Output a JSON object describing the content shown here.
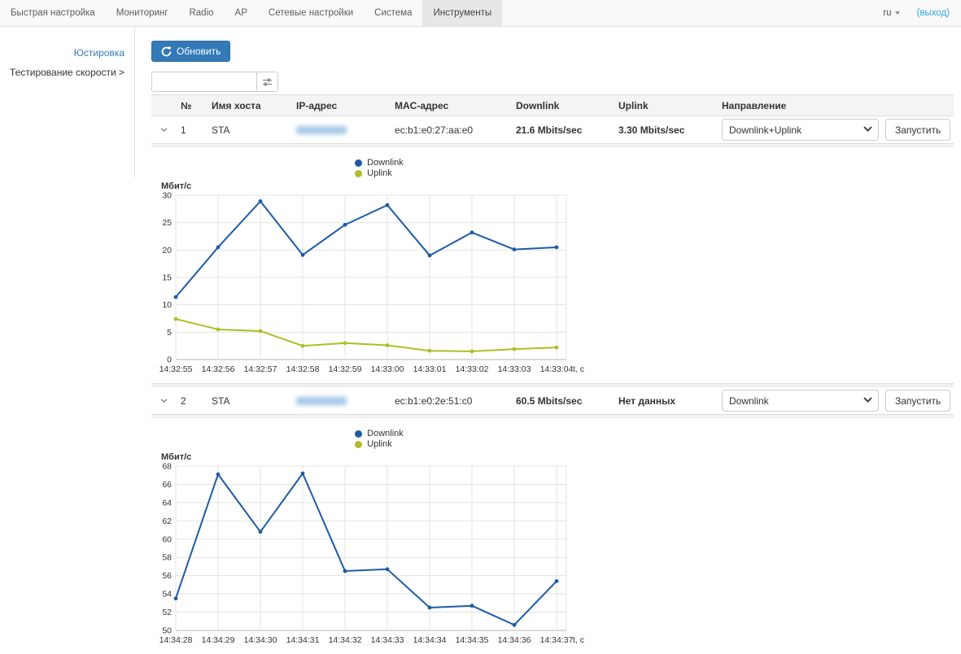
{
  "nav": {
    "tabs": [
      "Быстрая настройка",
      "Мониторинг",
      "Radio",
      "AP",
      "Сетевые настройки",
      "Система",
      "Инструменты"
    ],
    "active_tab": "Инструменты",
    "lang": "ru",
    "logout_label": "(выход)"
  },
  "sidebar": {
    "items": [
      "Юстировка",
      "Тестирование скорости >"
    ]
  },
  "toolbar": {
    "refresh_label": "Обновить",
    "search_value": "",
    "search_placeholder": ""
  },
  "table": {
    "headers": [
      "№",
      "Имя хоста",
      "IP-адрес",
      "MAC-адрес",
      "Downlink",
      "Uplink",
      "Направление"
    ],
    "run_label": "Запустить",
    "rows": [
      {
        "num": "1",
        "host": "STA",
        "ip_redacted": true,
        "mac": "ec:b1:e0:27:aa:e0",
        "downlink": "21.6 Mbits/sec",
        "uplink": "3.30 Mbits/sec",
        "direction": "Downlink+Uplink"
      },
      {
        "num": "2",
        "host": "STA",
        "ip_redacted": true,
        "mac": "ec:b1:e0:2e:51:c0",
        "downlink": "60.5 Mbits/sec",
        "uplink": "Нет данных",
        "direction": "Downlink"
      }
    ]
  },
  "chart_data": [
    {
      "type": "line",
      "title": "",
      "ylabel": "Мбит/с",
      "xlabel": "t, c",
      "grid": true,
      "legend_position": "top-center",
      "legend": [
        {
          "label": "Downlink",
          "color": "#1d5ba5"
        },
        {
          "label": "Uplink",
          "color": "#b0bd24"
        }
      ],
      "x": [
        "14:32:55",
        "14:32:56",
        "14:32:57",
        "14:32:58",
        "14:32:59",
        "14:33:00",
        "14:33:01",
        "14:33:02",
        "14:33:03",
        "14:33:04"
      ],
      "ylim": [
        0,
        30
      ],
      "ytick_step": 5,
      "series": [
        {
          "name": "Downlink",
          "color": "#1d5ba5",
          "values": [
            11.4,
            20.5,
            28.9,
            19.1,
            24.6,
            28.2,
            19.0,
            23.2,
            20.1,
            20.5
          ]
        },
        {
          "name": "Uplink",
          "color": "#b0bd24",
          "values": [
            7.4,
            5.5,
            5.2,
            2.5,
            3.0,
            2.6,
            1.6,
            1.5,
            1.9,
            2.2
          ]
        }
      ]
    },
    {
      "type": "line",
      "title": "",
      "ylabel": "Мбит/с",
      "xlabel": "t, c",
      "grid": true,
      "legend_position": "top-center",
      "legend": [
        {
          "label": "Downlink",
          "color": "#1d5ba5"
        },
        {
          "label": "Uplink",
          "color": "#b0bd24"
        }
      ],
      "x": [
        "14:34:28",
        "14:34:29",
        "14:34:30",
        "14:34:31",
        "14:34:32",
        "14:34:33",
        "14:34:34",
        "14:34:35",
        "14:34:36",
        "14:34:37"
      ],
      "ylim": [
        50,
        68
      ],
      "ytick_step": 2,
      "series": [
        {
          "name": "Downlink",
          "color": "#1d5ba5",
          "values": [
            53.5,
            67.1,
            60.8,
            67.2,
            56.5,
            56.7,
            52.5,
            52.7,
            50.6,
            55.4
          ]
        }
      ]
    }
  ]
}
